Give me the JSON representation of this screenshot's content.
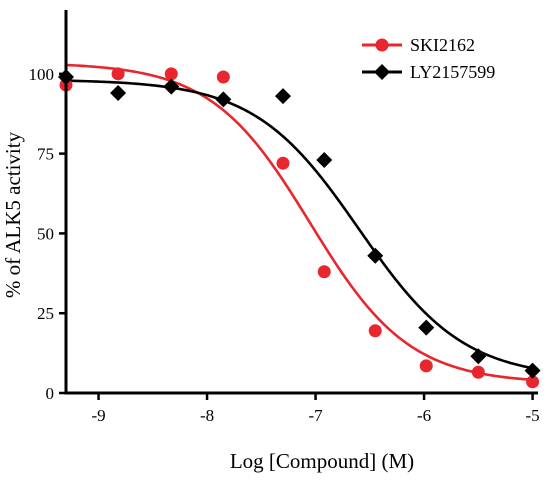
{
  "chart_data": {
    "type": "scatter",
    "title": "",
    "xlabel": "Log [Compound] (M)",
    "ylabel": "% of ALK5 activity",
    "xlim": [
      -9.3,
      -4.95
    ],
    "ylim": [
      0,
      120
    ],
    "xticks": [
      -9,
      -8,
      -7,
      -6,
      -5
    ],
    "xtick_labels": [
      "-9",
      "-8",
      "-7",
      "-6",
      "-5"
    ],
    "yticks": [
      0,
      25,
      50,
      75,
      100
    ],
    "ytick_labels": [
      "0",
      "25",
      "50",
      "75",
      "100"
    ],
    "grid": false,
    "legend_position": "top-right",
    "series": [
      {
        "name": "SKI2162",
        "color": "#e8262d",
        "marker": "circle",
        "x": [
          -9.3,
          -8.82,
          -8.33,
          -7.85,
          -7.3,
          -6.92,
          -6.45,
          -5.98,
          -5.5,
          -5.0
        ],
        "y": [
          96.5,
          100,
          100,
          99,
          72,
          38,
          19.5,
          8.5,
          6.5,
          3.5
        ],
        "fit": {
          "top": 103.5,
          "bottom": 3.0,
          "logEC50": -7.05,
          "hill": 0.95
        }
      },
      {
        "name": "LY2157599",
        "color": "#000000",
        "marker": "diamond",
        "x": [
          -9.3,
          -8.82,
          -8.33,
          -7.85,
          -7.3,
          -6.92,
          -6.45,
          -5.98,
          -5.5,
          -5.0
        ],
        "y": [
          99,
          94,
          96,
          92,
          93,
          73,
          43,
          20.5,
          11.5,
          7
        ],
        "fit": {
          "top": 98.2,
          "bottom": 4.5,
          "logEC50": -6.6,
          "hill": 0.9
        }
      }
    ]
  }
}
